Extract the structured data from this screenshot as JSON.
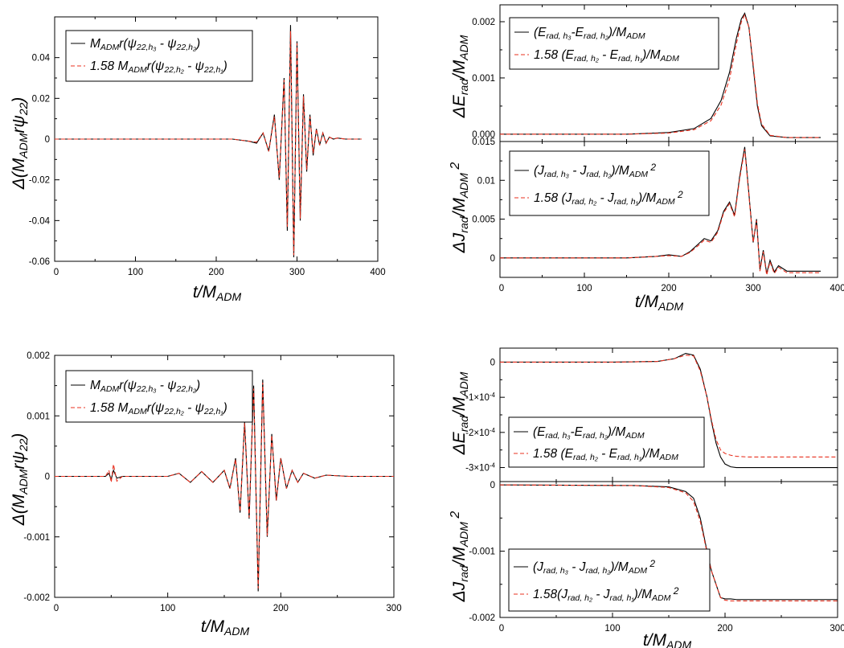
{
  "chart_data": [
    {
      "type": "line",
      "xlabel": "t/M_ADM",
      "ylabel": "Δ(M_ADM r ψ22)",
      "xlim": [
        0,
        400
      ],
      "ylim": [
        -0.06,
        0.06
      ],
      "xticks": [
        "0",
        "100",
        "200",
        "300",
        "400"
      ],
      "yticks": [
        "-0.06",
        "-0.04",
        "-0.02",
        "0",
        "0.02",
        "0.04"
      ],
      "legend_position": "top-left",
      "series": [
        {
          "name": "M_ADM r(ψ22,h3 - ψ22,h2)",
          "color": "#000000",
          "dash": "solid",
          "x": [
            0,
            220,
            240,
            250,
            258,
            265,
            272,
            278,
            284,
            288,
            292,
            296,
            300,
            304,
            308,
            312,
            316,
            320,
            324,
            328,
            332,
            336,
            340,
            345,
            350,
            360,
            380
          ],
          "y": [
            0,
            0,
            -0.001,
            -0.002,
            0.003,
            -0.006,
            0.012,
            -0.02,
            0.03,
            -0.045,
            0.056,
            -0.058,
            0.048,
            -0.04,
            0.022,
            -0.016,
            0.012,
            -0.008,
            0.005,
            -0.003,
            0.003,
            -0.002,
            0.001,
            0,
            0.0005,
            0,
            0
          ]
        },
        {
          "name": "1.58 M_ADM r(ψ22,h2 - ψ22,h1)",
          "color": "#e8301f",
          "dash": "dashed",
          "x": [
            0,
            220,
            240,
            250,
            258,
            265,
            272,
            278,
            284,
            288,
            292,
            296,
            300,
            304,
            308,
            312,
            316,
            320,
            324,
            328,
            332,
            336,
            340,
            345,
            350,
            360,
            380
          ],
          "y": [
            0,
            0,
            -0.001,
            -0.0015,
            0.003,
            -0.006,
            0.011,
            -0.019,
            0.029,
            -0.043,
            0.053,
            -0.057,
            0.047,
            -0.039,
            0.021,
            -0.015,
            0.011,
            -0.007,
            0.005,
            -0.003,
            0.003,
            -0.002,
            0.001,
            0,
            0.0005,
            0,
            0
          ]
        }
      ]
    },
    {
      "type": "line",
      "xlabel": "",
      "ylabel": "ΔE_rad/M_ADM",
      "xlim": [
        0,
        400
      ],
      "ylim": [
        -0.00013,
        0.0023
      ],
      "xticks": [],
      "yticks": [
        "0.000",
        "0.001",
        "0.002"
      ],
      "legend_position": "top-left",
      "series": [
        {
          "name": "(E_rad,h3 - E_rad,h2)/M_ADM",
          "color": "#000000",
          "dash": "solid",
          "x": [
            0,
            150,
            200,
            230,
            250,
            262,
            272,
            280,
            286,
            290,
            295,
            300,
            305,
            310,
            320,
            340,
            380
          ],
          "y": [
            0,
            0,
            3e-05,
            0.0001,
            0.00028,
            0.0006,
            0.0011,
            0.0017,
            0.00205,
            0.00215,
            0.0019,
            0.0012,
            0.0005,
            0.00015,
            -3e-05,
            -6e-05,
            -6e-05
          ]
        },
        {
          "name": "1.58 (E_rad,h2 - E_rad,h1)/M_ADM",
          "color": "#e8301f",
          "dash": "dashed",
          "x": [
            0,
            150,
            200,
            230,
            250,
            262,
            272,
            280,
            286,
            290,
            295,
            300,
            305,
            310,
            320,
            340,
            380
          ],
          "y": [
            0,
            0,
            2e-05,
            8e-05,
            0.00024,
            0.00052,
            0.00098,
            0.0016,
            0.002,
            0.00212,
            0.0019,
            0.00125,
            0.00055,
            0.00018,
            -2e-05,
            -6e-05,
            -6e-05
          ]
        }
      ]
    },
    {
      "type": "line",
      "xlabel": "t/M_ADM",
      "ylabel": "ΔJ_rad/M_ADM^2",
      "xlim": [
        0,
        400
      ],
      "ylim": [
        -0.0025,
        0.015
      ],
      "xticks": [
        "0",
        "100",
        "200",
        "300",
        "400"
      ],
      "yticks": [
        "0",
        "0.005",
        "0.01",
        "0.015"
      ],
      "legend_position": "top-left",
      "series": [
        {
          "name": "(J_rad,h3 - J_rad,h2)/M_ADM^2",
          "color": "#000000",
          "dash": "solid",
          "x": [
            0,
            150,
            185,
            200,
            215,
            225,
            235,
            242,
            250,
            258,
            265,
            272,
            278,
            284,
            290,
            295,
            300,
            304,
            308,
            312,
            316,
            320,
            325,
            330,
            340,
            360,
            380
          ],
          "y": [
            0,
            0,
            0.0002,
            0.0004,
            0.0002,
            0.0008,
            0.0018,
            0.0025,
            0.0022,
            0.0035,
            0.006,
            0.0072,
            0.0055,
            0.0105,
            0.0143,
            0.0082,
            0.002,
            0.005,
            -0.0015,
            0.001,
            -0.002,
            -0.0003,
            -0.0018,
            -0.001,
            -0.0017,
            -0.0017,
            -0.0017
          ]
        },
        {
          "name": "1.58 (J_rad,h2 - J_rad,h1)/M_ADM^2",
          "color": "#e8301f",
          "dash": "dashed",
          "x": [
            0,
            150,
            185,
            200,
            215,
            225,
            235,
            242,
            250,
            258,
            265,
            272,
            278,
            284,
            290,
            295,
            300,
            304,
            308,
            312,
            316,
            320,
            325,
            330,
            340,
            360,
            380
          ],
          "y": [
            0,
            0,
            0.0002,
            0.0003,
            0.0002,
            0.0007,
            0.0016,
            0.0023,
            0.002,
            0.0033,
            0.0058,
            0.007,
            0.0053,
            0.0102,
            0.014,
            0.008,
            0.002,
            0.0048,
            -0.0017,
            0.0008,
            -0.0022,
            -0.0005,
            -0.002,
            -0.0012,
            -0.0019,
            -0.0019,
            -0.0019
          ]
        }
      ]
    },
    {
      "type": "line",
      "xlabel": "t/M_ADM",
      "ylabel": "Δ(M_ADM r ψ22)",
      "xlim": [
        0,
        300
      ],
      "ylim": [
        -0.002,
        0.002
      ],
      "xticks": [
        "0",
        "100",
        "200",
        "300"
      ],
      "yticks": [
        "-0.002",
        "-0.001",
        "0",
        "0.001",
        "0.002"
      ],
      "legend_position": "top-left",
      "series": [
        {
          "name": "M_ADM r(ψ22,h3 - ψ22,h2)",
          "color": "#000000",
          "dash": "solid",
          "x": [
            0,
            45,
            48,
            50,
            52,
            55,
            60,
            100,
            110,
            120,
            130,
            140,
            150,
            155,
            160,
            164,
            168,
            172,
            176,
            180,
            184,
            188,
            192,
            196,
            200,
            205,
            210,
            215,
            220,
            230,
            240,
            260,
            300
          ],
          "y": [
            0,
            0,
            5e-05,
            -5e-05,
            0.0001,
            -3e-05,
            0,
            0,
            5e-05,
            -0.0001,
            8e-05,
            -0.0001,
            0.0001,
            -0.0002,
            0.0003,
            -0.0006,
            0.0009,
            -0.0007,
            0.0015,
            -0.0019,
            0.0016,
            -0.001,
            0.0007,
            -0.0004,
            0.0003,
            -0.0002,
            0.0001,
            -0.0001,
            5e-05,
            -3e-05,
            2e-05,
            0,
            0
          ]
        },
        {
          "name": "1.58 M_ADM r(ψ22,h2 - ψ22,h1)",
          "color": "#e8301f",
          "dash": "dashed",
          "x": [
            0,
            45,
            48,
            50,
            52,
            55,
            60,
            100,
            110,
            120,
            130,
            140,
            150,
            155,
            160,
            164,
            168,
            172,
            176,
            180,
            184,
            188,
            192,
            196,
            200,
            205,
            210,
            215,
            220,
            230,
            240,
            260,
            300
          ],
          "y": [
            0,
            0,
            0.0001,
            -0.0001,
            0.0002,
            -8e-05,
            0,
            0,
            5e-05,
            -0.0001,
            8e-05,
            -0.0001,
            0.0001,
            -0.0002,
            0.00028,
            -0.00058,
            0.00088,
            -0.00068,
            0.00145,
            -0.00185,
            0.00155,
            -0.00098,
            0.00068,
            -0.0004,
            0.0003,
            -0.0002,
            0.0001,
            -0.0001,
            5e-05,
            -3e-05,
            2e-05,
            0,
            0
          ]
        }
      ]
    },
    {
      "type": "line",
      "xlabel": "",
      "ylabel": "ΔE_rad/M_ADM",
      "xlim": [
        0,
        300
      ],
      "ylim": [
        -0.00034,
        4e-05
      ],
      "xticks": [],
      "yticks": [
        "0",
        "-1×10⁻⁴",
        "-2×10⁻⁴",
        "-3×10⁻⁴"
      ],
      "legend_position": "bottom-left",
      "series": [
        {
          "name": "(E_rad,h3 - E_rad,h2)/M_ADM",
          "color": "#000000",
          "dash": "solid",
          "x": [
            0,
            100,
            140,
            155,
            165,
            172,
            178,
            184,
            188,
            192,
            196,
            200,
            205,
            210,
            220,
            240,
            300
          ],
          "y": [
            0,
            0,
            2e-06,
            1e-05,
            2.5e-05,
            2e-05,
            -2e-05,
            -0.0001,
            -0.00017,
            -0.00023,
            -0.00027,
            -0.00029,
            -0.000298,
            -0.0003,
            -0.0003,
            -0.0003,
            -0.0003
          ]
        },
        {
          "name": "1.58 (E_rad,h2 - E_rad,h1)/M_ADM",
          "color": "#e8301f",
          "dash": "dashed",
          "x": [
            0,
            100,
            140,
            155,
            165,
            172,
            178,
            184,
            188,
            192,
            196,
            200,
            205,
            210,
            220,
            240,
            300
          ],
          "y": [
            0,
            0,
            2e-06,
            1e-05,
            2e-05,
            1.8e-05,
            -2.5e-05,
            -0.0001,
            -0.000165,
            -0.00022,
            -0.00025,
            -0.00026,
            -0.000265,
            -0.000268,
            -0.00027,
            -0.00027,
            -0.00027
          ]
        }
      ]
    },
    {
      "type": "line",
      "xlabel": "t/M_ADM",
      "ylabel": "ΔJ_rad/M_ADM^2",
      "xlim": [
        0,
        300
      ],
      "ylim": [
        -0.002,
        5e-05
      ],
      "xticks": [
        "0",
        "100",
        "200",
        "300"
      ],
      "yticks": [
        "-0.002",
        "-0.001",
        "0"
      ],
      "legend_position": "bottom-left",
      "series": [
        {
          "name": "(J_rad,h3 - J_rad,h2)/M_ADM^2",
          "color": "#000000",
          "dash": "solid",
          "x": [
            0,
            120,
            150,
            165,
            172,
            178,
            184,
            188,
            192,
            196,
            200,
            205,
            210,
            220,
            240,
            300
          ],
          "y": [
            0,
            -1e-05,
            -3e-05,
            -0.0001,
            -0.0002,
            -0.0005,
            -0.001,
            -0.0013,
            -0.0015,
            -0.0017,
            -0.00172,
            -0.00172,
            -0.00173,
            -0.00173,
            -0.00173,
            -0.00173
          ]
        },
        {
          "name": "1.58(J_rad,h2 - J_rad,h1)/M_ADM^2",
          "color": "#e8301f",
          "dash": "dashed",
          "x": [
            0,
            120,
            150,
            165,
            172,
            178,
            184,
            188,
            192,
            196,
            200,
            205,
            210,
            220,
            240,
            300
          ],
          "y": [
            0,
            -1e-05,
            -4e-05,
            -0.00012,
            -0.00025,
            -0.00055,
            -0.00102,
            -0.0013,
            -0.0015,
            -0.0017,
            -0.00174,
            -0.00175,
            -0.00175,
            -0.00175,
            -0.00175,
            -0.00175
          ]
        }
      ]
    }
  ]
}
